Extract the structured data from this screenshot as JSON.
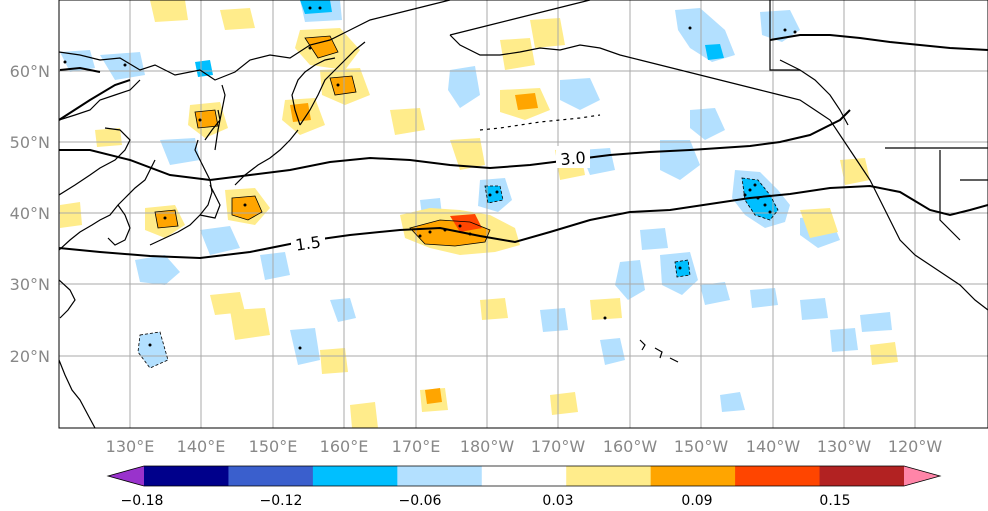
{
  "map": {
    "lat_labels": [
      "60°N",
      "50°N",
      "40°N",
      "30°N",
      "20°N"
    ],
    "lon_labels": [
      "130°E",
      "140°E",
      "150°E",
      "160°E",
      "170°E",
      "180°W",
      "170°W",
      "160°W",
      "150°W",
      "140°W",
      "130°W",
      "120°W"
    ],
    "contour_labels": [
      "3.0",
      "1.5"
    ]
  },
  "colorbar": {
    "colors": [
      "#9932cc",
      "#00008b",
      "#3a5fcd",
      "#00bfff",
      "#b3e0ff",
      "#ffffff",
      "#ffec8b",
      "#ffa500",
      "#ff4500",
      "#b22222",
      "#ff85a8"
    ],
    "tick_labels": [
      "−0.18",
      "−0.12",
      "−0.06",
      "0.03",
      "0.09",
      "0.15"
    ]
  }
}
